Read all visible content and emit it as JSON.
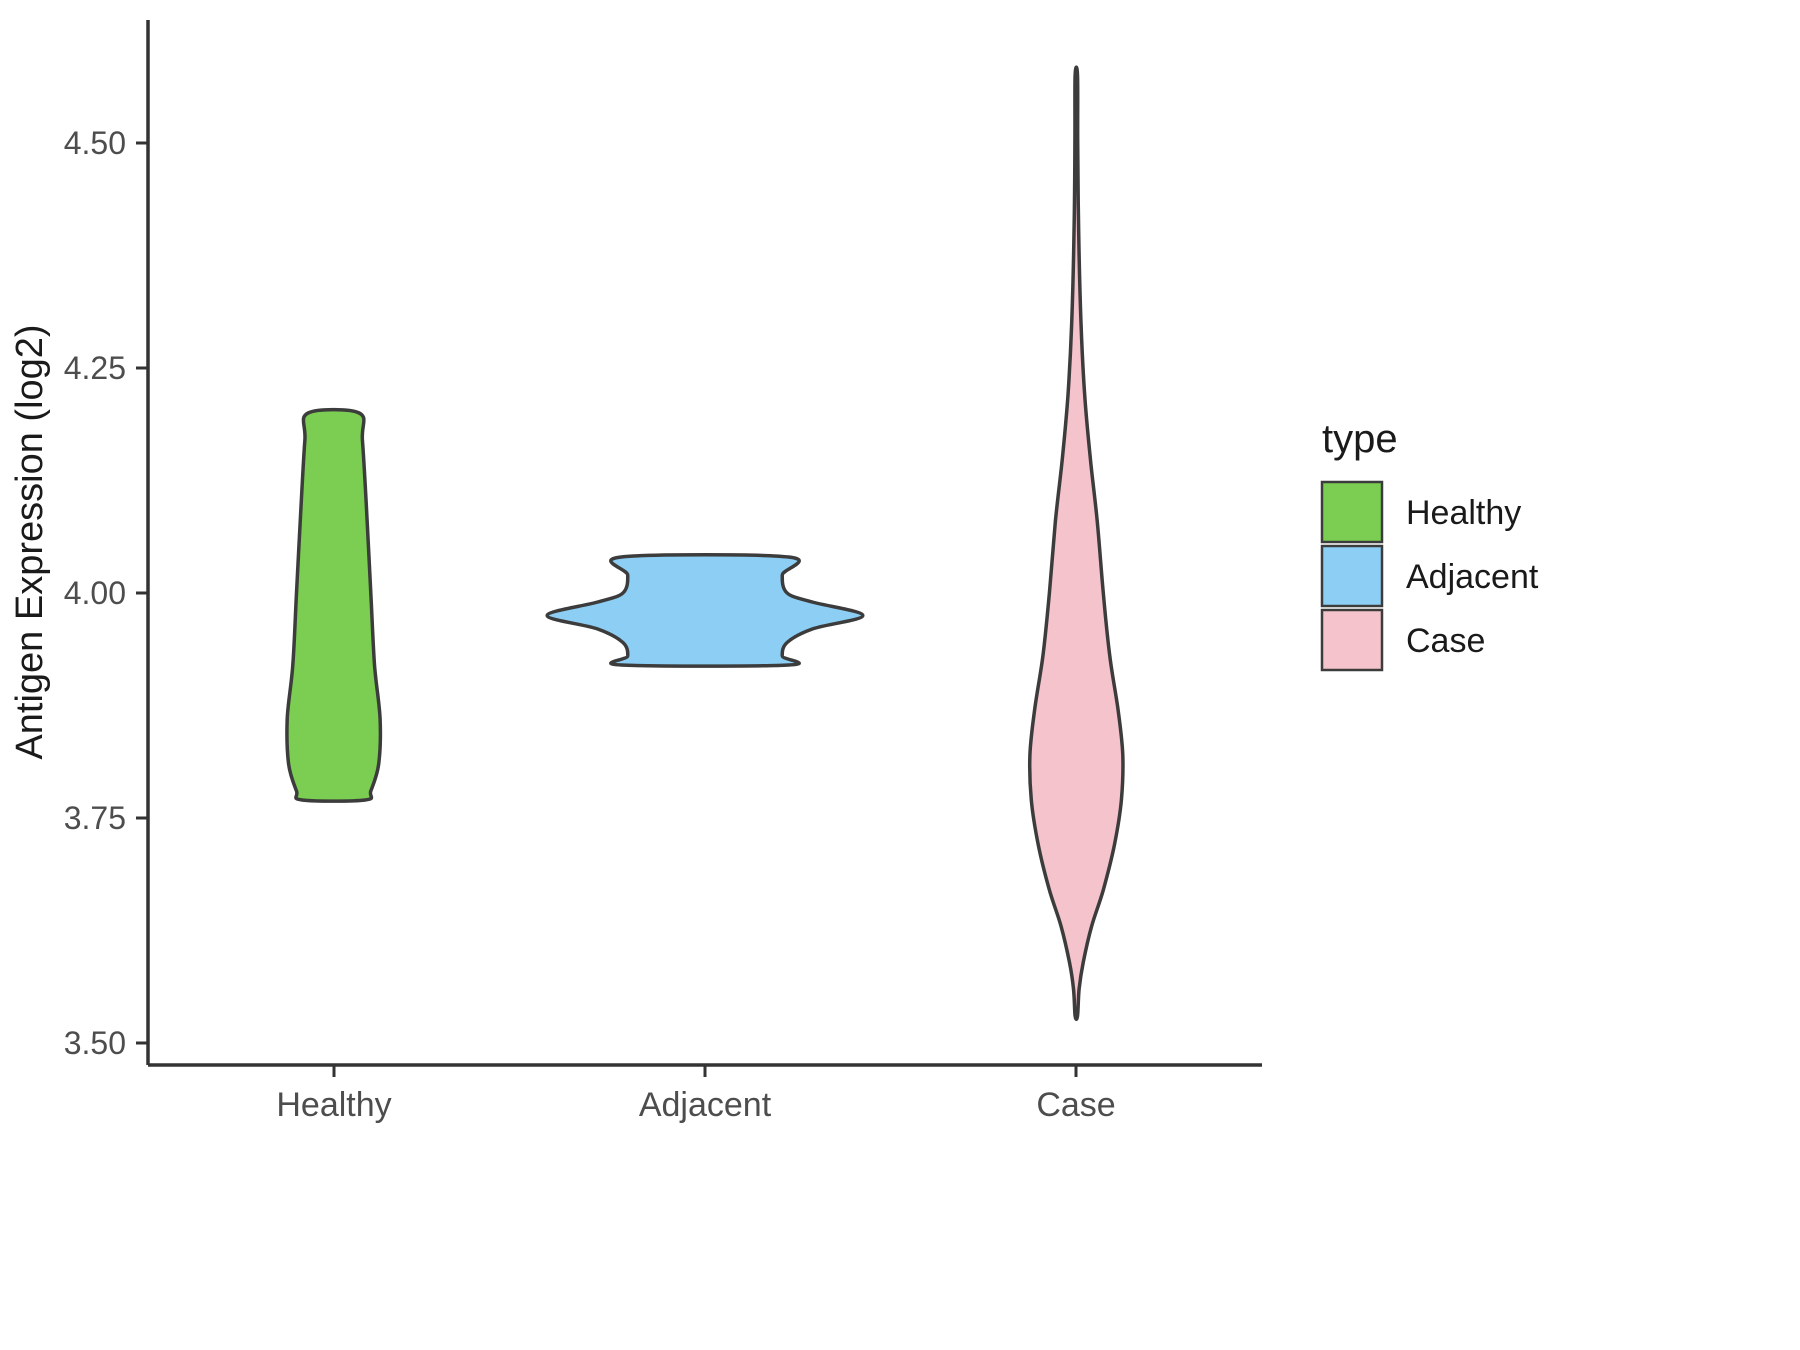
{
  "chart_data": {
    "type": "violin",
    "title": "",
    "xlabel": "",
    "ylabel": "Antigen Expression (log2)",
    "categories": [
      "Healthy",
      "Adjacent",
      "Case"
    ],
    "ylim": [
      3.4756,
      4.6367
    ],
    "yticks": [
      3.5,
      3.75,
      4.0,
      4.25,
      4.5
    ],
    "ytick_labels": [
      "3.50",
      "3.75",
      "4.00",
      "4.25",
      "4.50"
    ],
    "grid": "off",
    "outline_color": "#3c3c3c",
    "axis_color": "#333333",
    "tick_text_color": "#4d4d4d",
    "legend": {
      "title": "type",
      "position": "right",
      "items": [
        {
          "label": "Healthy",
          "color": "#7bce51"
        },
        {
          "label": "Adjacent",
          "color": "#8dcff4"
        },
        {
          "label": "Case",
          "color": "#f4c3cc"
        }
      ]
    },
    "series": [
      {
        "name": "Healthy",
        "color": "#7bce51",
        "max_width": 0.25,
        "y_range": [
          3.77,
          4.2
        ],
        "profile": [
          [
            4.2,
            0.55
          ],
          [
            4.17,
            0.62
          ],
          [
            4.1,
            0.7
          ],
          [
            4.0,
            0.8
          ],
          [
            3.92,
            0.88
          ],
          [
            3.86,
            1.0
          ],
          [
            3.81,
            0.97
          ],
          [
            3.78,
            0.8
          ],
          [
            3.77,
            0.68
          ]
        ]
      },
      {
        "name": "Adjacent",
        "color": "#8dcff4",
        "max_width": 0.85,
        "y_range": [
          3.92,
          4.04
        ],
        "profile": [
          [
            4.04,
            0.53
          ],
          [
            4.02,
            0.49
          ],
          [
            4.0,
            0.52
          ],
          [
            3.99,
            0.68
          ],
          [
            3.975,
            1.0
          ],
          [
            3.96,
            0.68
          ],
          [
            3.945,
            0.52
          ],
          [
            3.93,
            0.49
          ],
          [
            3.92,
            0.53
          ]
        ]
      },
      {
        "name": "Case",
        "color": "#f4c3cc",
        "max_width": 0.25,
        "y_range": [
          3.53,
          4.58
        ],
        "profile": [
          [
            4.575,
            0.015
          ],
          [
            4.5,
            0.03
          ],
          [
            4.4,
            0.05
          ],
          [
            4.3,
            0.1
          ],
          [
            4.22,
            0.18
          ],
          [
            4.15,
            0.3
          ],
          [
            4.08,
            0.45
          ],
          [
            4.0,
            0.58
          ],
          [
            3.93,
            0.72
          ],
          [
            3.87,
            0.9
          ],
          [
            3.82,
            1.0
          ],
          [
            3.77,
            0.97
          ],
          [
            3.72,
            0.82
          ],
          [
            3.67,
            0.58
          ],
          [
            3.63,
            0.33
          ],
          [
            3.59,
            0.15
          ],
          [
            3.56,
            0.06
          ],
          [
            3.53,
            0.02
          ]
        ]
      }
    ]
  }
}
